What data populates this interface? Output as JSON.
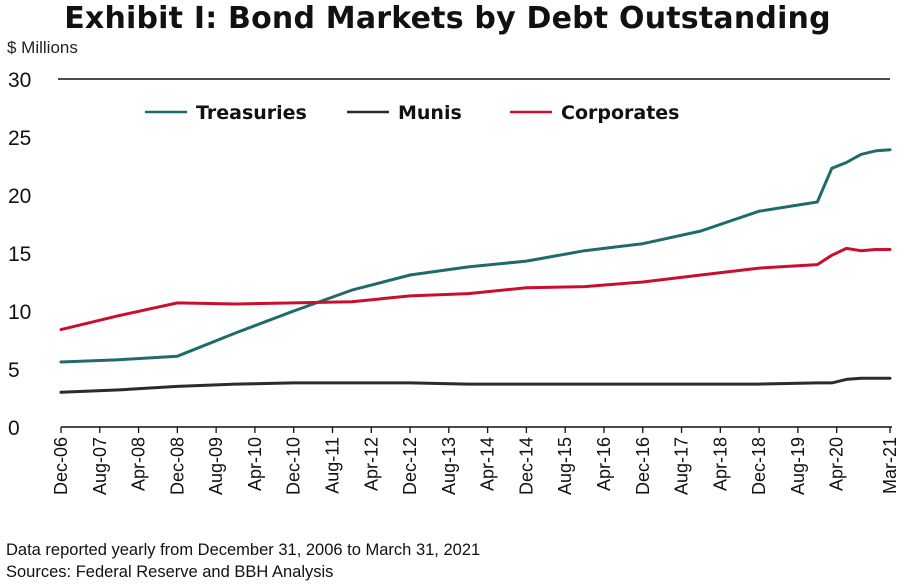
{
  "title": "Exhibit I: Bond Markets by Debt Outstanding",
  "unit_label": "$ Millions",
  "notes": [
    "Data reported yearly from December 31, 2006 to March 31, 2021",
    "Sources: Federal Reserve and BBH Analysis"
  ],
  "chart_data": {
    "type": "line",
    "title": "Exhibit I: Bond Markets by Debt Outstanding",
    "ylabel": "$ Millions",
    "ylim": [
      0,
      30
    ],
    "yticks": [
      0,
      5,
      10,
      15,
      20,
      25,
      30
    ],
    "grid": false,
    "legend_position": "top",
    "x_tick_labels": [
      "Dec-06",
      "Aug-07",
      "Apr-08",
      "Dec-08",
      "Aug-09",
      "Apr-10",
      "Dec-10",
      "Aug-11",
      "Apr-12",
      "Dec-12",
      "Aug-13",
      "Apr-14",
      "Dec-14",
      "Aug-15",
      "Apr-16",
      "Dec-16",
      "Aug-17",
      "Apr-18",
      "Dec-18",
      "Aug-19",
      "Apr-20",
      "Mar-21"
    ],
    "x_tick_months": [
      0,
      8,
      16,
      24,
      32,
      40,
      48,
      56,
      64,
      72,
      80,
      88,
      96,
      104,
      112,
      120,
      128,
      136,
      144,
      152,
      160,
      171
    ],
    "x": [
      0,
      12,
      24,
      36,
      48,
      60,
      72,
      84,
      96,
      108,
      120,
      132,
      144,
      156,
      159,
      162,
      165,
      168,
      171
    ],
    "series": [
      {
        "name": "Treasuries",
        "color": "#1f6b6b",
        "values": [
          5.6,
          5.8,
          6.1,
          8.1,
          10.0,
          11.8,
          13.1,
          13.8,
          14.3,
          15.2,
          15.8,
          16.9,
          18.6,
          19.4,
          22.3,
          22.8,
          23.5,
          23.8,
          23.9
        ]
      },
      {
        "name": "Munis",
        "color": "#2b2b2b",
        "values": [
          3.0,
          3.2,
          3.5,
          3.7,
          3.8,
          3.8,
          3.8,
          3.7,
          3.7,
          3.7,
          3.7,
          3.7,
          3.7,
          3.8,
          3.8,
          4.1,
          4.2,
          4.2,
          4.2
        ]
      },
      {
        "name": "Corporates",
        "color": "#c8102e",
        "values": [
          8.4,
          9.6,
          10.7,
          10.6,
          10.7,
          10.8,
          11.3,
          11.5,
          12.0,
          12.1,
          12.5,
          13.1,
          13.7,
          14.0,
          14.8,
          15.4,
          15.2,
          15.3,
          15.3
        ]
      }
    ]
  }
}
